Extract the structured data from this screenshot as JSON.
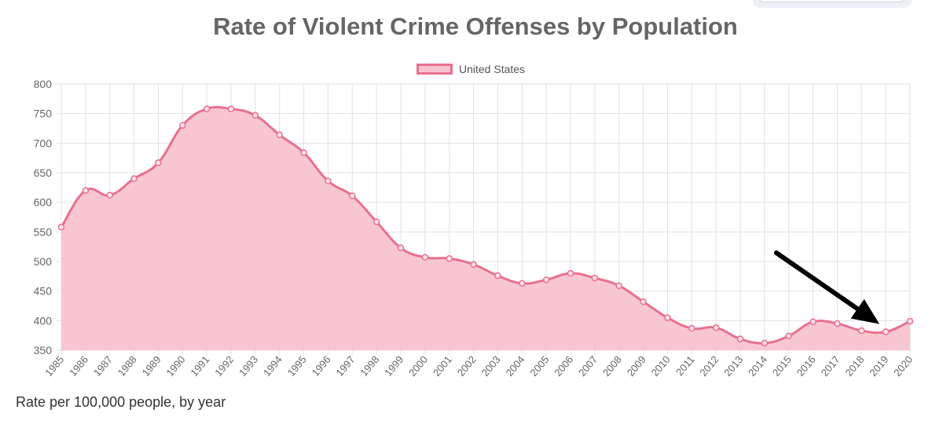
{
  "chart_data": {
    "type": "area",
    "title": "Rate of Violent Crime Offenses by Population",
    "x": [
      "1985",
      "1986",
      "1987",
      "1988",
      "1989",
      "1990",
      "1991",
      "1992",
      "1993",
      "1994",
      "1995",
      "1996",
      "1997",
      "1998",
      "1999",
      "2000",
      "2001",
      "2002",
      "2003",
      "2004",
      "2005",
      "2006",
      "2007",
      "2008",
      "2009",
      "2010",
      "2011",
      "2012",
      "2013",
      "2014",
      "2015",
      "2016",
      "2017",
      "2018",
      "2019",
      "2020"
    ],
    "series": [
      {
        "name": "United States",
        "values": [
          558,
          620,
          612,
          640,
          667,
          730,
          758,
          758,
          747,
          714,
          684,
          636,
          611,
          567,
          523,
          507,
          505,
          495,
          476,
          463,
          469,
          480,
          472,
          459,
          432,
          405,
          387,
          388,
          369,
          362,
          374,
          398,
          395,
          383,
          381,
          399
        ]
      }
    ],
    "ylim": [
      350,
      800
    ],
    "yticks": [
      "350",
      "400",
      "450",
      "500",
      "550",
      "600",
      "650",
      "700",
      "750",
      "800"
    ],
    "grid": true,
    "legend_position": "top-center",
    "colors": {
      "line": "#e8708e",
      "fill": "#f7c3cf",
      "point": "#e8708e"
    },
    "annotation": "arrow pointing to 2019"
  },
  "caption": "Rate per 100,000 people, by year"
}
